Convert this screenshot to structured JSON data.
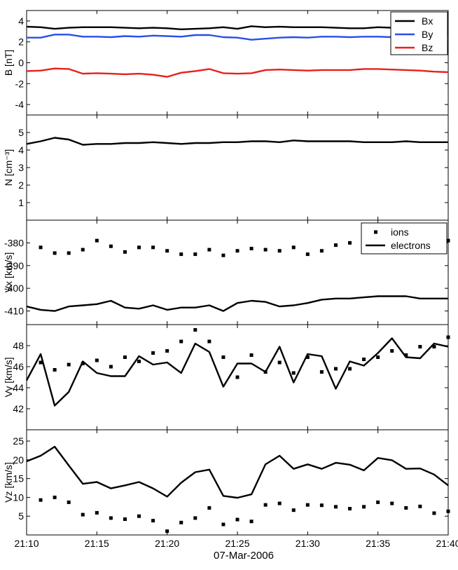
{
  "figure": {
    "date_label": "07-Mar-2006",
    "x_tick_labels": [
      "21:10",
      "21:15",
      "21:20",
      "21:25",
      "21:30",
      "21:35",
      "21:40"
    ],
    "colors": {
      "bx": "#000000",
      "by": "#2a4fe6",
      "bz": "#e8201c",
      "axis": "#000000"
    }
  },
  "chart_data": [
    {
      "id": "b",
      "type": "line",
      "ylabel": "B [nT]",
      "xlim": [
        0,
        30
      ],
      "ylim": [
        -5,
        5
      ],
      "yticks": [
        -4,
        -2,
        0,
        2,
        4
      ],
      "legend": "top-right",
      "series": [
        {
          "name": "Bx",
          "color": "#000000",
          "x": [
            0,
            1,
            2,
            3,
            4,
            5,
            6,
            7,
            8,
            9,
            10,
            11,
            12,
            13,
            14,
            15,
            16,
            17,
            18,
            19,
            20,
            21,
            22,
            23,
            24,
            25,
            26,
            27,
            28,
            29,
            30
          ],
          "values": [
            3.45,
            3.4,
            3.25,
            3.35,
            3.4,
            3.4,
            3.4,
            3.35,
            3.3,
            3.35,
            3.3,
            3.2,
            3.25,
            3.3,
            3.4,
            3.25,
            3.5,
            3.4,
            3.45,
            3.4,
            3.4,
            3.4,
            3.35,
            3.3,
            3.3,
            3.4,
            3.35,
            3.4,
            3.3,
            3.3,
            3.35
          ]
        },
        {
          "name": "By",
          "color": "#2a4fe6",
          "x": [
            0,
            1,
            2,
            3,
            4,
            5,
            6,
            7,
            8,
            9,
            10,
            11,
            12,
            13,
            14,
            15,
            16,
            17,
            18,
            19,
            20,
            21,
            22,
            23,
            24,
            25,
            26,
            27,
            28,
            29,
            30
          ],
          "values": [
            2.4,
            2.4,
            2.7,
            2.7,
            2.5,
            2.5,
            2.45,
            2.55,
            2.5,
            2.6,
            2.55,
            2.5,
            2.65,
            2.65,
            2.45,
            2.4,
            2.2,
            2.3,
            2.4,
            2.45,
            2.4,
            2.5,
            2.5,
            2.45,
            2.5,
            2.5,
            2.45,
            2.4,
            2.4,
            2.35,
            2.35
          ]
        },
        {
          "name": "Bz",
          "color": "#e8201c",
          "x": [
            0,
            1,
            2,
            3,
            4,
            5,
            6,
            7,
            8,
            9,
            10,
            11,
            12,
            13,
            14,
            15,
            16,
            17,
            18,
            19,
            20,
            21,
            22,
            23,
            24,
            25,
            26,
            27,
            28,
            29,
            30
          ],
          "values": [
            -0.8,
            -0.75,
            -0.55,
            -0.6,
            -1.05,
            -1.0,
            -1.05,
            -1.1,
            -1.05,
            -1.15,
            -1.35,
            -0.95,
            -0.8,
            -0.6,
            -1.0,
            -1.05,
            -1.0,
            -0.7,
            -0.65,
            -0.7,
            -0.75,
            -0.7,
            -0.7,
            -0.7,
            -0.6,
            -0.6,
            -0.65,
            -0.7,
            -0.75,
            -0.85,
            -0.9
          ]
        }
      ]
    },
    {
      "id": "n",
      "type": "line",
      "ylabel": "N [cm⁻³]",
      "xlim": [
        0,
        30
      ],
      "ylim": [
        0,
        6
      ],
      "yticks": [
        1,
        2,
        3,
        4,
        5
      ],
      "series": [
        {
          "name": "N",
          "color": "#000000",
          "x": [
            0,
            1,
            2,
            3,
            4,
            5,
            6,
            7,
            8,
            9,
            10,
            11,
            12,
            13,
            14,
            15,
            16,
            17,
            18,
            19,
            20,
            21,
            22,
            23,
            24,
            25,
            26,
            27,
            28,
            29,
            30
          ],
          "values": [
            4.35,
            4.5,
            4.7,
            4.6,
            4.3,
            4.35,
            4.35,
            4.4,
            4.4,
            4.45,
            4.4,
            4.35,
            4.4,
            4.4,
            4.45,
            4.45,
            4.5,
            4.5,
            4.45,
            4.55,
            4.5,
            4.5,
            4.5,
            4.5,
            4.45,
            4.45,
            4.45,
            4.5,
            4.45,
            4.45,
            4.45
          ]
        }
      ]
    },
    {
      "id": "vx",
      "type": "line",
      "ylabel": "Vx [km/s]",
      "xlim": [
        0,
        30
      ],
      "ylim": [
        -416,
        -370
      ],
      "yticks": [
        -410,
        -400,
        -390,
        -380
      ],
      "legend": "top-right",
      "series": [
        {
          "name": "ions",
          "style": "markers",
          "color": "#000000",
          "x": [
            1,
            2,
            3,
            4,
            5,
            6,
            7,
            8,
            9,
            10,
            11,
            12,
            13,
            14,
            15,
            16,
            17,
            18,
            19,
            20,
            21,
            22,
            23,
            24,
            25,
            26,
            27,
            28,
            29,
            30
          ],
          "values": [
            -382,
            -384.5,
            -384.5,
            -383,
            -379,
            -381.5,
            -384,
            -382,
            -382,
            -383.5,
            -385,
            -385,
            -383,
            -385.5,
            -383.5,
            -382.5,
            -383,
            -383.5,
            -382,
            -385,
            -383.5,
            -381,
            -380,
            -382,
            -381,
            -380,
            -380,
            -381,
            -380,
            -379
          ]
        },
        {
          "name": "electrons",
          "style": "line",
          "color": "#000000",
          "x": [
            0,
            1,
            2,
            3,
            4,
            5,
            6,
            7,
            8,
            9,
            10,
            11,
            12,
            13,
            14,
            15,
            16,
            17,
            18,
            19,
            20,
            21,
            22,
            23,
            24,
            25,
            26,
            27,
            28,
            29,
            30
          ],
          "values": [
            -408,
            -409.5,
            -410,
            -408,
            -407.5,
            -407,
            -405.5,
            -408.5,
            -409,
            -407.5,
            -409.5,
            -408.5,
            -408.5,
            -407.5,
            -410,
            -406.5,
            -405.5,
            -406,
            -408,
            -407.5,
            -406.5,
            -405,
            -404.5,
            -404.5,
            -404,
            -403.5,
            -403.5,
            -403.5,
            -404.5,
            -404.5,
            -404.5
          ]
        }
      ]
    },
    {
      "id": "vy",
      "type": "line",
      "ylabel": "Vy [km/s]",
      "xlim": [
        0,
        30
      ],
      "ylim": [
        40,
        50
      ],
      "yticks": [
        42,
        44,
        46,
        48
      ],
      "series": [
        {
          "name": "ions",
          "style": "markers",
          "color": "#000000",
          "x": [
            1,
            2,
            3,
            4,
            5,
            6,
            7,
            8,
            9,
            10,
            11,
            12,
            13,
            14,
            15,
            16,
            17,
            18,
            19,
            20,
            21,
            22,
            23,
            24,
            25,
            26,
            27,
            28,
            29,
            30
          ],
          "values": [
            46.4,
            45.7,
            46.2,
            46.3,
            46.6,
            46.0,
            46.9,
            46.5,
            47.3,
            47.5,
            48.4,
            49.5,
            48.4,
            46.9,
            45.0,
            47.1,
            45.5,
            46.4,
            45.4,
            46.9,
            45.5,
            45.8,
            45.8,
            46.7,
            46.9,
            47.5,
            47.1,
            47.9,
            47.9,
            48.8
          ]
        },
        {
          "name": "electrons",
          "style": "line",
          "color": "#000000",
          "x": [
            0,
            1,
            2,
            3,
            4,
            5,
            6,
            7,
            8,
            9,
            10,
            11,
            12,
            13,
            14,
            15,
            16,
            17,
            18,
            19,
            20,
            21,
            22,
            23,
            24,
            25,
            26,
            27,
            28,
            29,
            30
          ],
          "values": [
            44.7,
            47.2,
            42.3,
            43.6,
            46.5,
            45.4,
            45.1,
            45.1,
            47.0,
            46.2,
            46.4,
            45.4,
            48.2,
            47.4,
            44.1,
            46.3,
            46.3,
            45.5,
            47.9,
            44.5,
            47.2,
            47.0,
            43.9,
            46.5,
            46.1,
            47.3,
            48.7,
            46.9,
            46.8,
            48.2,
            47.9
          ]
        }
      ]
    },
    {
      "id": "vz",
      "type": "line",
      "ylabel": "Vz [km/s]",
      "xlim": [
        0,
        30
      ],
      "ylim": [
        0,
        28
      ],
      "yticks": [
        5,
        10,
        15,
        20,
        25
      ],
      "series": [
        {
          "name": "ions",
          "style": "markers",
          "color": "#000000",
          "x": [
            1,
            2,
            3,
            4,
            5,
            6,
            7,
            8,
            9,
            10,
            11,
            12,
            13,
            14,
            15,
            16,
            17,
            18,
            19,
            20,
            21,
            22,
            23,
            24,
            25,
            26,
            27,
            28,
            29,
            30
          ],
          "values": [
            9.3,
            10.0,
            8.7,
            5.4,
            5.9,
            4.5,
            4.2,
            5.0,
            3.8,
            1.0,
            3.3,
            4.5,
            7.2,
            2.8,
            4.1,
            3.6,
            8.0,
            8.4,
            6.6,
            8.0,
            7.9,
            7.5,
            7.0,
            7.5,
            8.7,
            8.4,
            7.2,
            7.6,
            5.8,
            6.3
          ]
        },
        {
          "name": "electrons",
          "style": "line",
          "color": "#000000",
          "x": [
            0,
            1,
            2,
            3,
            4,
            5,
            6,
            7,
            8,
            9,
            10,
            11,
            12,
            13,
            14,
            15,
            16,
            17,
            18,
            19,
            20,
            21,
            22,
            23,
            24,
            25,
            26,
            27,
            28,
            29,
            30
          ],
          "values": [
            19.6,
            21.1,
            23.5,
            18.5,
            13.6,
            14.1,
            12.4,
            13.2,
            14.1,
            12.4,
            10.2,
            13.9,
            16.7,
            17.4,
            10.4,
            9.9,
            10.8,
            18.8,
            21.1,
            17.6,
            18.8,
            17.6,
            19.2,
            18.7,
            17.2,
            20.5,
            19.9,
            17.6,
            17.7,
            16.1,
            13.2
          ]
        }
      ]
    }
  ]
}
